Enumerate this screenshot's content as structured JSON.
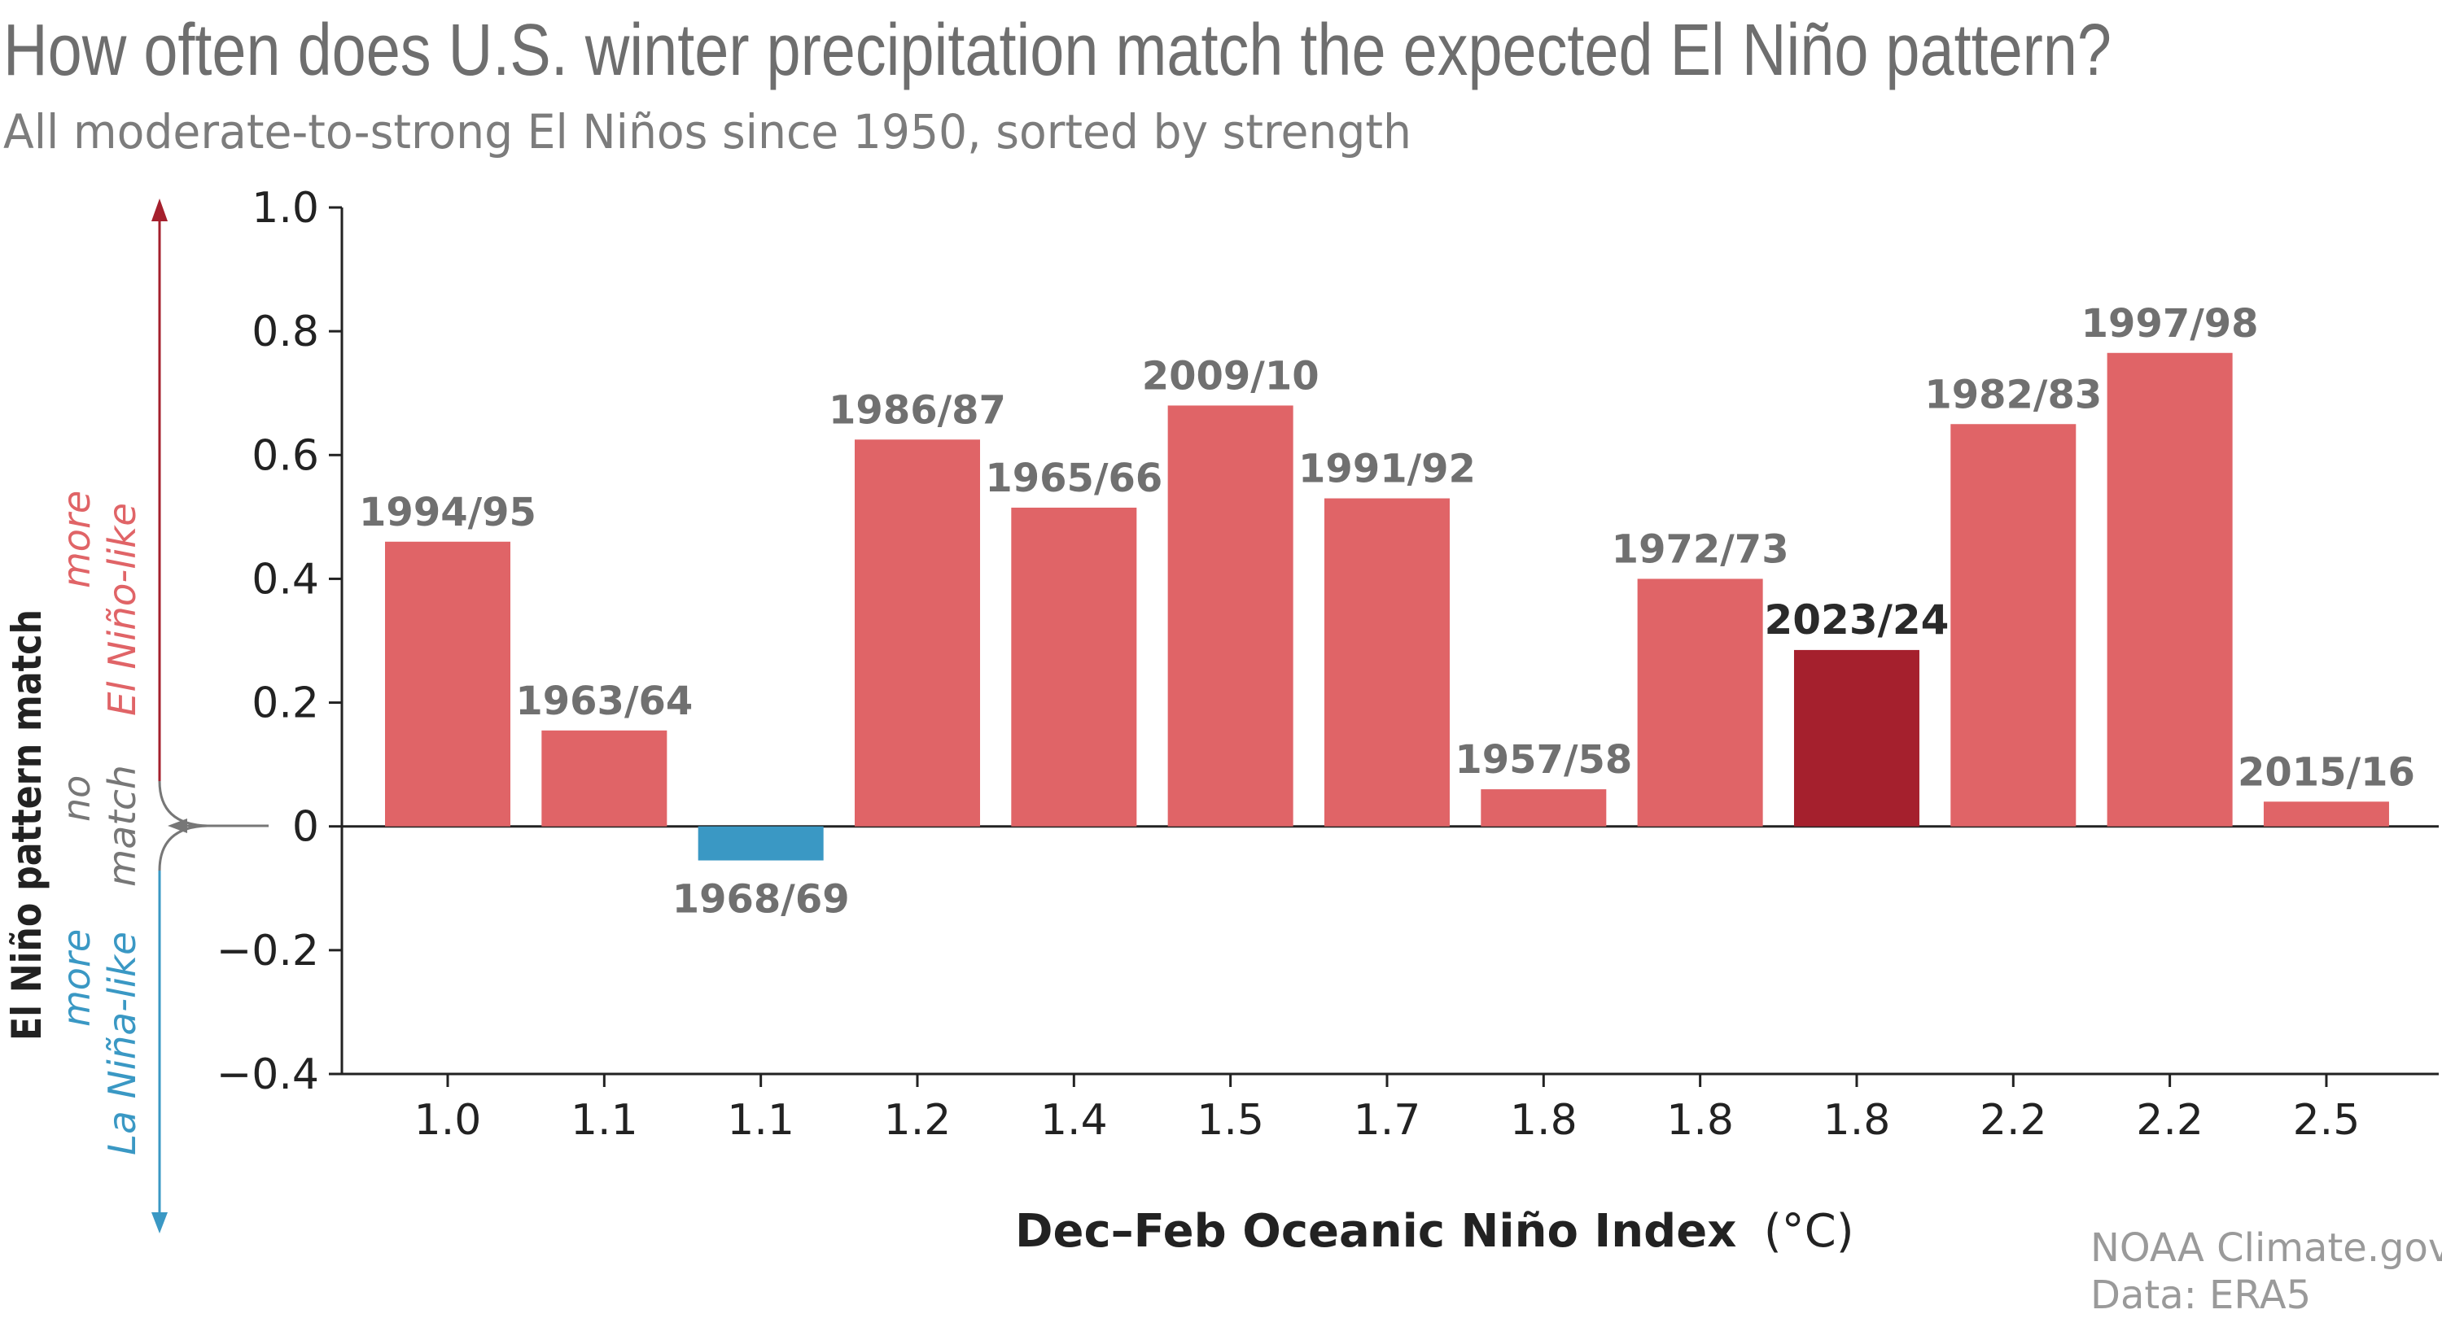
{
  "colors": {
    "positive_bar": "#e06467",
    "negative_bar": "#3a98c4",
    "highlight_bar": "#a5202d",
    "el_nino_text": "#e06467",
    "la_nina_text": "#3a98c4",
    "no_match_text": "#777777",
    "up_arrow": "#a5202d",
    "down_arrow": "#3a98c4"
  },
  "chart_data": {
    "type": "bar",
    "title": "How often does U.S. winter precipitation match the expected El Niño pattern?",
    "subtitle": "All moderate-to-strong El Niños since 1950, sorted by strength",
    "xlabel": "Dec–Feb Oceanic Niño Index",
    "xlabel_unit": "(°C)",
    "ylabel": "El Niño pattern match",
    "ylim": [
      -0.4,
      1.0
    ],
    "yticks": [
      "1.0",
      "0.8",
      "0.6",
      "0.4",
      "0.2",
      "0",
      "−0.2",
      "−0.4"
    ],
    "ytick_values": [
      1.0,
      0.8,
      0.6,
      0.4,
      0.2,
      0,
      -0.2,
      -0.4
    ],
    "categories": [
      "1.0",
      "1.1",
      "1.1",
      "1.2",
      "1.4",
      "1.5",
      "1.7",
      "1.8",
      "1.8",
      "1.8",
      "2.2",
      "2.2",
      "2.5"
    ],
    "winters": [
      "1994/95",
      "1963/64",
      "1968/69",
      "1986/87",
      "1965/66",
      "2009/10",
      "1991/92",
      "1957/58",
      "1972/73",
      "2023/24",
      "1982/83",
      "1997/98",
      "2015/16"
    ],
    "values": [
      0.46,
      0.155,
      -0.055,
      0.625,
      0.515,
      0.68,
      0.53,
      0.06,
      0.4,
      0.285,
      0.65,
      0.765,
      0.04
    ],
    "highlight": "2023/24",
    "grid": false,
    "annotations": {
      "more_el_nino": [
        "more",
        "El Niño-like"
      ],
      "no_match": [
        "no",
        "match"
      ],
      "more_la_nina": [
        "more",
        "La Niña-like"
      ]
    }
  },
  "credits": {
    "line1": "NOAA Climate.gov",
    "line2": "Data: ERA5"
  }
}
